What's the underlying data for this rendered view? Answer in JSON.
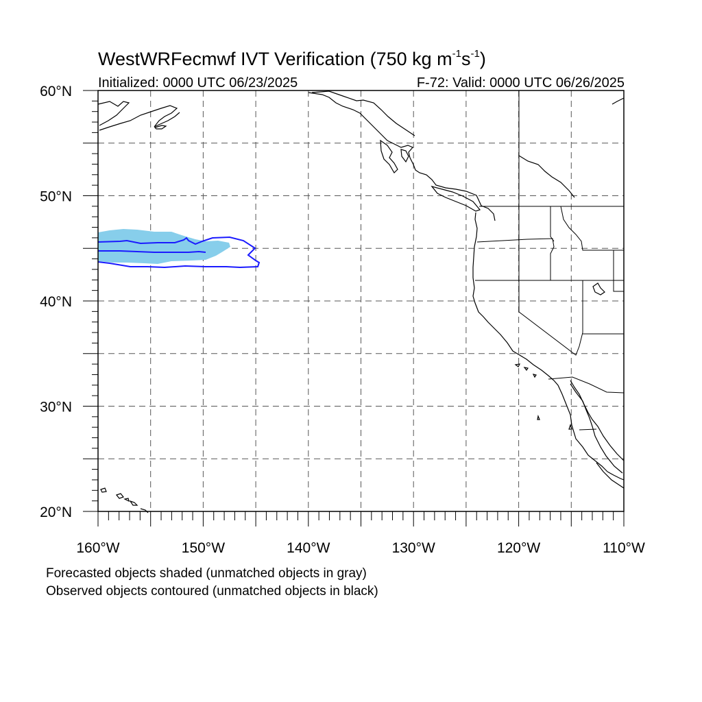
{
  "title": {
    "prefix": "WestWRFecmwf IVT Verification (750 kg m",
    "exp1": "-1",
    "mid": "s",
    "exp2": "-1",
    "suffix": ")"
  },
  "initialized": "Initialized: 0000 UTC 06/23/2025",
  "valid": "F-72: Valid: 0000 UTC 06/26/2025",
  "map": {
    "lon_range": [
      -160,
      -110
    ],
    "lat_range": [
      20,
      60
    ],
    "gridlines": "dashed",
    "gridline_lons": [
      -155,
      -150,
      -145,
      -140,
      -135,
      -130,
      -125,
      -120,
      -115
    ],
    "gridline_lats": [
      25,
      30,
      35,
      40,
      45,
      50,
      55
    ],
    "lat_labels": [
      "60°N",
      "50°N",
      "40°N",
      "30°N",
      "20°N"
    ],
    "lat_label_values": [
      60,
      50,
      40,
      30,
      20
    ],
    "lon_labels": [
      "160°W",
      "150°W",
      "140°W",
      "130°W",
      "120°W",
      "110°W"
    ],
    "lon_label_values": [
      -160,
      -150,
      -140,
      -130,
      -120,
      -110
    ],
    "forecast_object": {
      "fill_color": "#87ceeb",
      "matched": true,
      "lon_extent": [
        -160,
        -147.3
      ],
      "lat_extent": [
        43.9,
        46.6
      ]
    },
    "observed_object": {
      "stroke_color": "#1a1aff",
      "matched": true,
      "lon_extent": [
        -160,
        -145.4
      ],
      "lat_extent": [
        43.7,
        46.2
      ]
    },
    "coastline_color": "#000000"
  },
  "notes": {
    "line1": "Forecasted objects shaded (unmatched objects in gray)",
    "line2": "Observed objects contoured (unmatched objects in black)"
  }
}
